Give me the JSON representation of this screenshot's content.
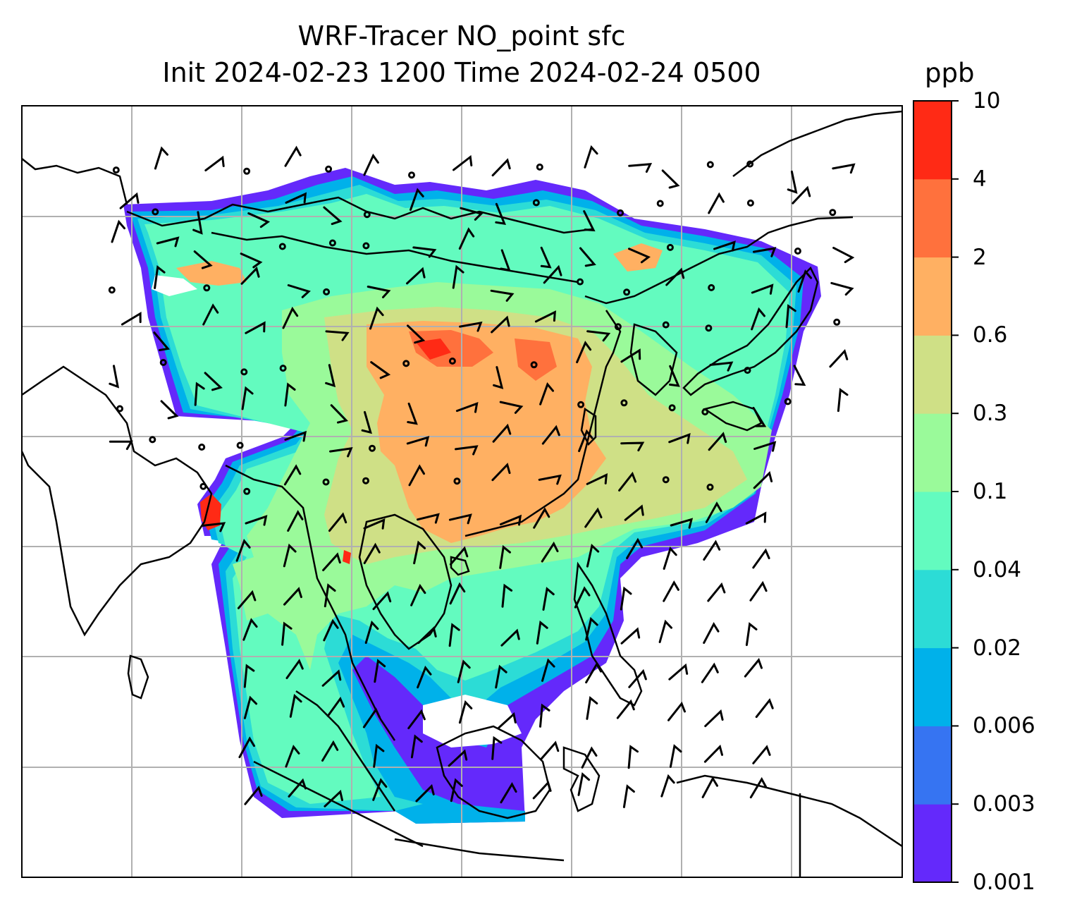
{
  "title": {
    "line1": "WRF-Tracer NO_point sfc",
    "line2": "Init 2024-02-23 1200 Time 2024-02-24 0500"
  },
  "colorbar": {
    "unit": "ppb",
    "levels": [
      "0.001",
      "0.003",
      "0.006",
      "0.02",
      "0.04",
      "0.1",
      "0.3",
      "0.6",
      "2",
      "4",
      "10"
    ],
    "colors": [
      "#6429fb",
      "#3674f2",
      "#00b1ea",
      "#2cdcd6",
      "#63fbbf",
      "#9afa9a",
      "#cfe086",
      "#ffb062",
      "#ff713d",
      "#ff2a15"
    ]
  },
  "map": {
    "gridlines": true,
    "background": "#ffffff",
    "coastline_color": "#000000",
    "grid_color": "#b0b0b0"
  }
}
